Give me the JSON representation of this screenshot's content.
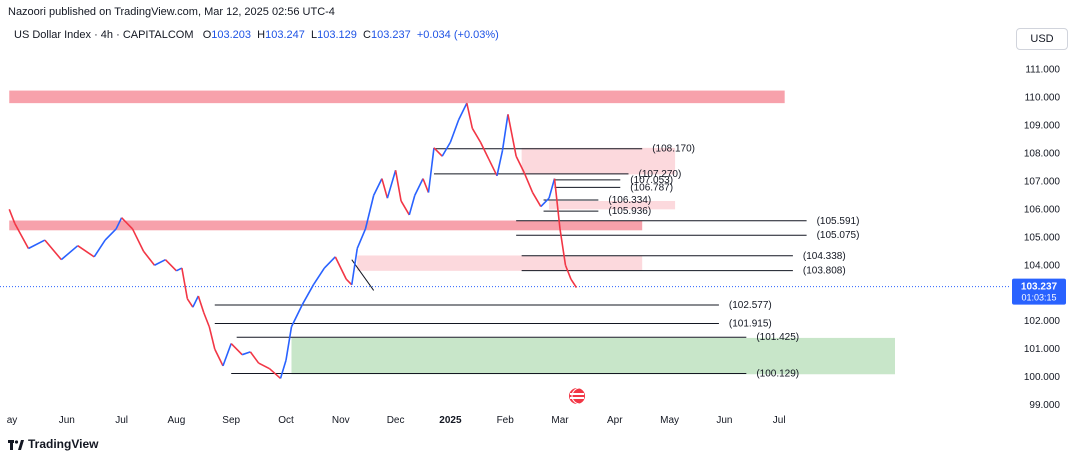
{
  "header": {
    "published": "Nazoori published on TradingView.com, Mar 12, 2025 02:56 UTC-4"
  },
  "symbol": {
    "name": "US Dollar Index · 4h · CAPITALCOM",
    "o_label": "O",
    "o_value": "103.203",
    "h_label": "H",
    "h_value": "103.247",
    "l_label": "L",
    "l_value": "103.129",
    "c_label": "C",
    "c_value": "103.237",
    "change": "+0.034 (+0.03%)"
  },
  "currency_button": "USD",
  "footer": {
    "brand": "TradingView"
  },
  "colors": {
    "up": "#2962ff",
    "down": "#f23645",
    "zone_red": "#f7a1ab",
    "zone_pink": "#fcd9dd",
    "zone_green": "#c8e6c9",
    "price_tag": "#2962ff"
  },
  "chart_data": {
    "type": "line",
    "ylim": [
      99.0,
      111.5
    ],
    "y_ticks": [
      "111.000",
      "110.000",
      "109.000",
      "108.000",
      "107.000",
      "106.000",
      "105.000",
      "104.000",
      "103.000",
      "102.000",
      "101.000",
      "100.000",
      "99.000"
    ],
    "x_ticks": [
      "ay",
      "Jun",
      "Jul",
      "Aug",
      "Sep",
      "Oct",
      "Nov",
      "Dec",
      "2025",
      "Feb",
      "Mar",
      "Apr",
      "May",
      "Jun",
      "Jul"
    ],
    "x_tick_values": [
      0,
      1,
      2,
      3,
      4,
      5,
      6,
      7,
      8,
      9,
      10,
      11,
      12,
      13,
      14
    ],
    "current_price": "103.237",
    "countdown": "01:03:15",
    "price": [
      [
        -0.05,
        106.0
      ],
      [
        0.05,
        105.5
      ],
      [
        0.3,
        104.6
      ],
      [
        0.6,
        104.9
      ],
      [
        0.9,
        104.2
      ],
      [
        1.2,
        104.7
      ],
      [
        1.5,
        104.3
      ],
      [
        1.7,
        104.9
      ],
      [
        1.9,
        105.3
      ],
      [
        2.0,
        105.7
      ],
      [
        2.2,
        105.3
      ],
      [
        2.4,
        104.5
      ],
      [
        2.6,
        104.0
      ],
      [
        2.8,
        104.2
      ],
      [
        3.0,
        103.8
      ],
      [
        3.1,
        103.9
      ],
      [
        3.2,
        102.8
      ],
      [
        3.3,
        102.5
      ],
      [
        3.4,
        102.9
      ],
      [
        3.5,
        102.3
      ],
      [
        3.6,
        101.8
      ],
      [
        3.7,
        101.0
      ],
      [
        3.85,
        100.4
      ],
      [
        4.0,
        101.2
      ],
      [
        4.2,
        100.8
      ],
      [
        4.35,
        100.9
      ],
      [
        4.5,
        100.5
      ],
      [
        4.7,
        100.3
      ],
      [
        4.9,
        99.95
      ],
      [
        5.0,
        100.6
      ],
      [
        5.1,
        101.8
      ],
      [
        5.3,
        102.6
      ],
      [
        5.5,
        103.3
      ],
      [
        5.7,
        103.9
      ],
      [
        5.9,
        104.3
      ],
      [
        6.1,
        103.5
      ],
      [
        6.2,
        103.3
      ],
      [
        6.3,
        104.6
      ],
      [
        6.45,
        105.3
      ],
      [
        6.6,
        106.5
      ],
      [
        6.75,
        107.1
      ],
      [
        6.85,
        106.4
      ],
      [
        7.0,
        107.4
      ],
      [
        7.1,
        106.3
      ],
      [
        7.25,
        105.8
      ],
      [
        7.35,
        106.5
      ],
      [
        7.5,
        107.1
      ],
      [
        7.6,
        106.6
      ],
      [
        7.7,
        108.2
      ],
      [
        7.85,
        107.9
      ],
      [
        8.0,
        108.4
      ],
      [
        8.15,
        109.2
      ],
      [
        8.3,
        109.8
      ],
      [
        8.4,
        108.9
      ],
      [
        8.55,
        108.4
      ],
      [
        8.7,
        107.8
      ],
      [
        8.85,
        107.2
      ],
      [
        8.95,
        108.1
      ],
      [
        9.05,
        109.4
      ],
      [
        9.2,
        107.9
      ],
      [
        9.35,
        107.3
      ],
      [
        9.5,
        106.6
      ],
      [
        9.65,
        106.1
      ],
      [
        9.8,
        106.4
      ],
      [
        9.9,
        107.1
      ],
      [
        10.0,
        105.3
      ],
      [
        10.1,
        104.0
      ],
      [
        10.2,
        103.5
      ],
      [
        10.3,
        103.2
      ]
    ],
    "levels": [
      {
        "label": "(108.170)",
        "y": 108.17,
        "x0": 7.7,
        "x1": 11.5
      },
      {
        "label": "(107.270)",
        "y": 107.27,
        "x0": 7.7,
        "x1": 11.25
      },
      {
        "label": "(107.053)",
        "y": 107.053,
        "x0": 9.9,
        "x1": 11.1
      },
      {
        "label": "(106.787)",
        "y": 106.787,
        "x0": 9.9,
        "x1": 11.1
      },
      {
        "label": "(106.334)",
        "y": 106.334,
        "x0": 9.7,
        "x1": 10.7
      },
      {
        "label": "(105.936)",
        "y": 105.936,
        "x0": 9.7,
        "x1": 10.7
      },
      {
        "label": "(105.591)",
        "y": 105.591,
        "x0": 9.2,
        "x1": 14.5
      },
      {
        "label": "(105.075)",
        "y": 105.075,
        "x0": 9.2,
        "x1": 14.5
      },
      {
        "label": "(104.338)",
        "y": 104.338,
        "x0": 9.3,
        "x1": 14.25
      },
      {
        "label": "(103.808)",
        "y": 103.808,
        "x0": 9.3,
        "x1": 14.25
      },
      {
        "label": "(102.577)",
        "y": 102.577,
        "x0": 3.7,
        "x1": 12.9
      },
      {
        "label": "(101.915)",
        "y": 101.915,
        "x0": 3.7,
        "x1": 12.9
      },
      {
        "label": "(101.425)",
        "y": 101.425,
        "x0": 4.1,
        "x1": 13.4
      },
      {
        "label": "(100.129)",
        "y": 100.129,
        "x0": 4.0,
        "x1": 13.4
      }
    ],
    "zones": [
      {
        "kind": "red",
        "y0": 109.8,
        "y1": 110.25,
        "x0": -0.05,
        "x1": 14.1
      },
      {
        "kind": "red",
        "y0": 105.25,
        "y1": 105.6,
        "x0": -0.05,
        "x1": 11.5
      },
      {
        "kind": "pink",
        "y0": 107.25,
        "y1": 108.2,
        "x0": 9.3,
        "x1": 12.1
      },
      {
        "kind": "pink",
        "y0": 106.0,
        "y1": 106.3,
        "x0": 9.8,
        "x1": 12.1
      },
      {
        "kind": "pink",
        "y0": 103.8,
        "y1": 104.35,
        "x0": 6.3,
        "x1": 11.5
      },
      {
        "kind": "green",
        "y0": 100.1,
        "y1": 101.4,
        "x0": 5.1,
        "x1": 16.2
      }
    ]
  }
}
